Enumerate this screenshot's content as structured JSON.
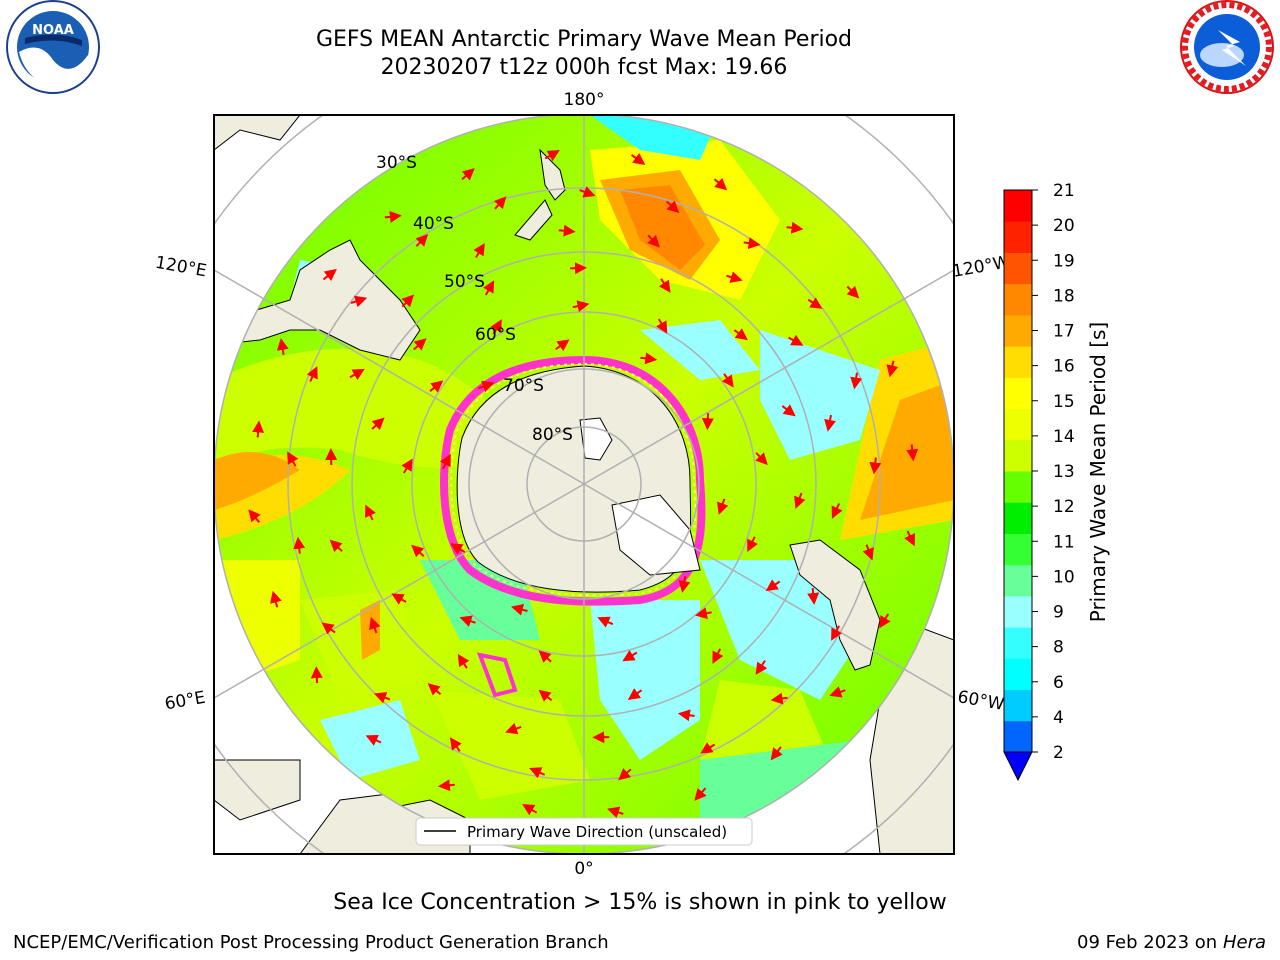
{
  "header": {
    "title_line1": "GEFS MEAN Antarctic Primary Wave Mean Period",
    "title_line2": "20230207 t12z 000h fcst   Max: 19.66"
  },
  "logos": {
    "left": "noaa-logo",
    "right": "national-weather-service-logo"
  },
  "map": {
    "projection": "south-polar-stereographic",
    "longitude_labels": {
      "top": "180°",
      "bottom": "0°",
      "upper_left": "120°E",
      "upper_right": "120°W",
      "lower_left": "60°E",
      "lower_right": "60°W"
    },
    "latitude_labels": [
      "30°S",
      "40°S",
      "50°S",
      "60°S",
      "70°S",
      "80°S"
    ],
    "legend_label": "Primary Wave Direction (unscaled)",
    "arrow_color": "#ff0000",
    "land_color": "#efedde",
    "sea_ice_colors": [
      "#ff33cc",
      "#ff66ff",
      "#ffff66"
    ]
  },
  "colorbar": {
    "label": "Primary Wave Mean Period [s]",
    "ticks": [
      "2",
      "4",
      "6",
      "8",
      "9",
      "10",
      "11",
      "12",
      "13",
      "14",
      "15",
      "16",
      "17",
      "18",
      "19",
      "20",
      "21"
    ],
    "colors": [
      "#0066ff",
      "#00ccff",
      "#00ffff",
      "#33ffff",
      "#99ffff",
      "#66ff99",
      "#33ff33",
      "#00ee00",
      "#66ff00",
      "#ccff00",
      "#eeff00",
      "#ffff00",
      "#ffdd00",
      "#ffaa00",
      "#ff8800",
      "#ff5500",
      "#ff2200",
      "#ff0000"
    ],
    "extend_color": "#0000ff"
  },
  "footer": {
    "note": "Sea Ice Concentration > 15% is shown in pink to yellow",
    "credit_left": "NCEP/EMC/Verification Post Processing Product Generation Branch",
    "credit_right_date": "09 Feb 2023 on",
    "credit_right_host": "Hera"
  }
}
